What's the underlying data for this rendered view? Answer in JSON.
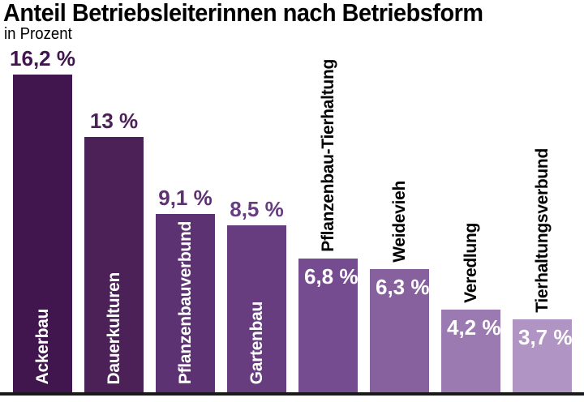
{
  "header": {
    "title": "Anteil Betriebsleiterinnen nach Betriebsform",
    "subtitle": "in Prozent"
  },
  "chart_data": {
    "type": "bar",
    "title": "Anteil Betriebsleiterinnen nach Betriebsform",
    "unit_label": "in Prozent",
    "orientation": "vertical",
    "grid": false,
    "legend": false,
    "ylim": [
      0,
      16.5
    ],
    "categories": [
      "Ackerbau",
      "Dauerkulturen",
      "Pflanzenbauverbund",
      "Gartenbau",
      "Pflanzenbau-Tierhaltung",
      "Weidevieh",
      "Veredlung",
      "Tierhaltungsverbund"
    ],
    "values": [
      16.2,
      13,
      9.1,
      8.5,
      6.8,
      6.3,
      4.2,
      3.7
    ],
    "value_labels": [
      "16,2 %",
      "13 %",
      "9,1 %",
      "8,5 %",
      "6,8 %",
      "6,3 %",
      "4,2 %",
      "3,7 %"
    ],
    "bar_colors": [
      "#41154d",
      "#4c2158",
      "#5d3272",
      "#673d80",
      "#764c90",
      "#87619e",
      "#9a7ab0",
      "#b095c4"
    ],
    "value_label_position": [
      "above",
      "above",
      "above",
      "above",
      "inside",
      "inside",
      "inside",
      "inside"
    ],
    "category_label_position": [
      "inside",
      "inside",
      "inside",
      "inside",
      "above",
      "above",
      "above",
      "above"
    ]
  },
  "colors": {
    "background": "#ffffff",
    "title_text": "#000000",
    "value_label_inside": "#ffffff",
    "category_label_inside": "#ffffff",
    "category_label_above": "#000000",
    "axis_line": "#1a1a1a"
  }
}
